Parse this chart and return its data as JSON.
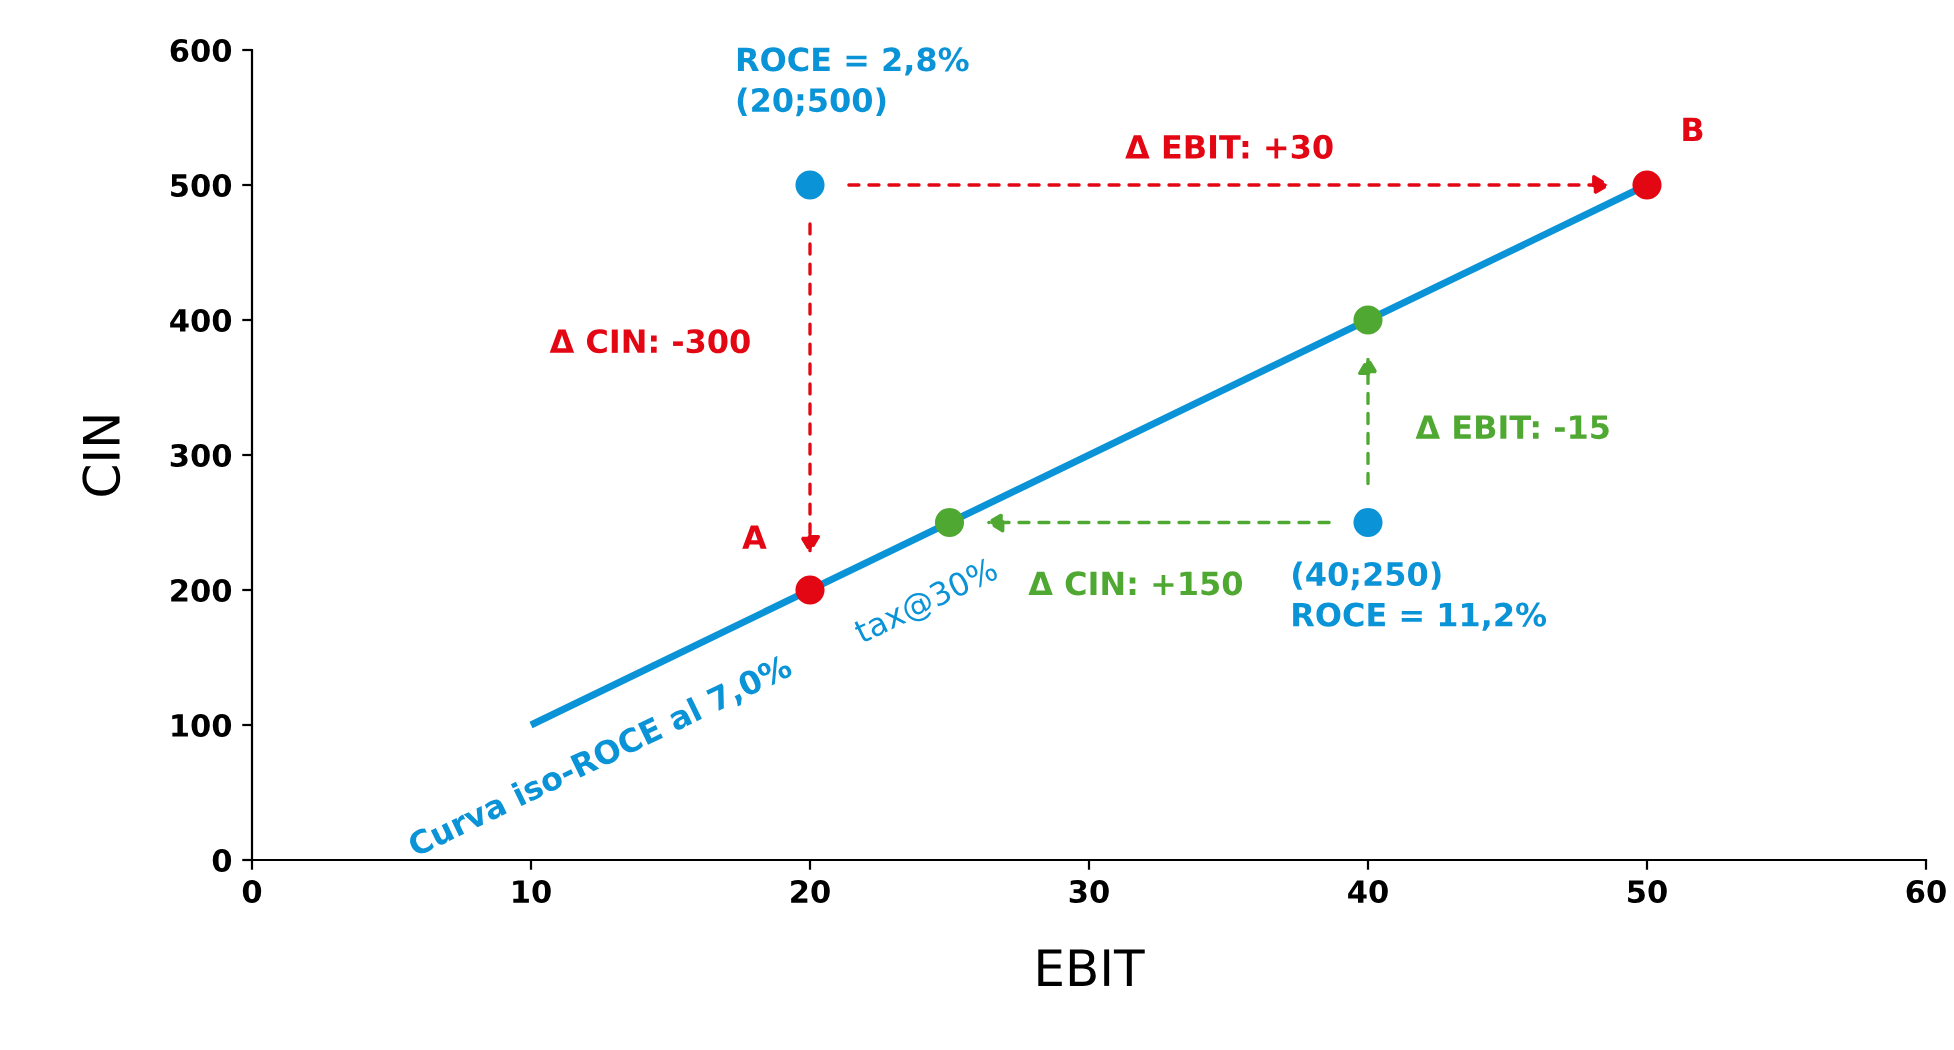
{
  "chart_data": {
    "type": "scatter",
    "xlabel": "EBIT",
    "ylabel": "CIN",
    "xlim": [
      0,
      60
    ],
    "xticks": [
      0,
      10,
      20,
      30,
      40,
      50,
      60
    ],
    "ylim": [
      0,
      600
    ],
    "yticks": [
      0,
      100,
      200,
      300,
      400,
      500,
      600
    ],
    "grid": false,
    "marker": "circle",
    "series": [
      {
        "type": "line",
        "marker": "none",
        "color": "#0a93d6",
        "x": [
          10,
          50
        ],
        "values": [
          100,
          500
        ]
      },
      {
        "color": "#0a93d6",
        "x": [
          20,
          40
        ],
        "values": [
          500,
          250
        ]
      },
      {
        "color": "#e30613",
        "x": [
          20,
          50
        ],
        "values": [
          200,
          500
        ]
      },
      {
        "color": "#4fa832",
        "x": [
          25,
          40
        ],
        "values": [
          250,
          400
        ]
      }
    ],
    "annotations": [
      {
        "text": "ROCE = 2,8%\n(20;500)",
        "x": 20,
        "y": 500
      },
      {
        "text": "B",
        "x": 50,
        "y": 500
      },
      {
        "text": "A",
        "x": 20,
        "y": 200
      },
      {
        "text": "(40;250)\nROCE = 11,2%",
        "x": 40,
        "y": 250
      },
      "Δ EBIT: +30",
      "Δ CIN: -300",
      "Δ EBIT: -15",
      "Δ CIN: +150",
      {
        "text": "Curva iso-ROCE al 7,0%",
        "x": 12.5,
        "y": 125
      },
      {
        "text": "tax@30%",
        "x": 23.6,
        "y": 236
      }
    ]
  }
}
